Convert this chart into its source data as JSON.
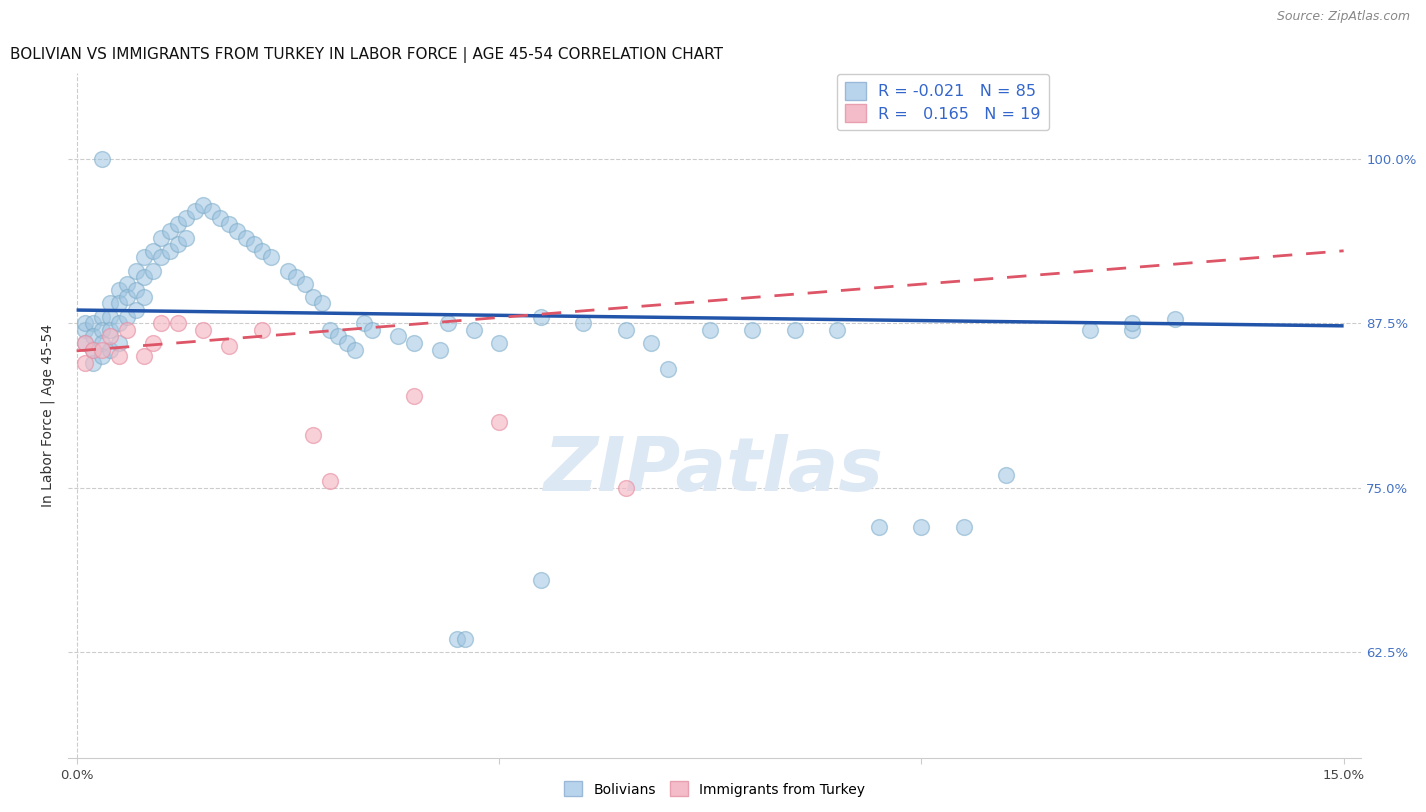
{
  "title": "BOLIVIAN VS IMMIGRANTS FROM TURKEY IN LABOR FORCE | AGE 45-54 CORRELATION CHART",
  "source": "Source: ZipAtlas.com",
  "ylabel": "In Labor Force | Age 45-54",
  "xlim": [
    -0.001,
    0.152
  ],
  "ylim": [
    0.545,
    1.065
  ],
  "xtick_positions": [
    0.0,
    0.05,
    0.1,
    0.15
  ],
  "xtick_labels": [
    "0.0%",
    "",
    "",
    "15.0%"
  ],
  "ytick_positions": [
    0.625,
    0.75,
    0.875,
    1.0
  ],
  "ytick_labels_right": [
    "62.5%",
    "75.0%",
    "87.5%",
    "100.0%"
  ],
  "blue_color": "#9ec4e0",
  "blue_edge": "#7aaac8",
  "pink_color": "#f4b8c4",
  "pink_edge": "#e890a4",
  "blue_line_color": "#2255aa",
  "pink_line_color": "#dd5566",
  "r_text_color": "#3366cc",
  "n_text_color": "#3366cc",
  "title_color": "#111111",
  "source_color": "#888888",
  "watermark_color": "#dde8f5",
  "tick_color": "#4472c4",
  "marker_size": 130,
  "blue_alpha": 0.55,
  "pink_alpha": 0.65,
  "blue_line_y0": 0.885,
  "blue_line_y1": 0.873,
  "pink_line_y0": 0.854,
  "pink_line_y1": 0.93,
  "bolivians_x": [
    0.001,
    0.001,
    0.001,
    0.002,
    0.002,
    0.002,
    0.002,
    0.003,
    0.003,
    0.003,
    0.003,
    0.004,
    0.004,
    0.004,
    0.004,
    0.005,
    0.005,
    0.005,
    0.005,
    0.006,
    0.006,
    0.006,
    0.007,
    0.007,
    0.007,
    0.008,
    0.008,
    0.008,
    0.009,
    0.009,
    0.01,
    0.01,
    0.011,
    0.011,
    0.012,
    0.012,
    0.013,
    0.013,
    0.014,
    0.015,
    0.016,
    0.017,
    0.018,
    0.019,
    0.02,
    0.021,
    0.022,
    0.023,
    0.025,
    0.026,
    0.027,
    0.028,
    0.029,
    0.03,
    0.031,
    0.032,
    0.033,
    0.034,
    0.035,
    0.038,
    0.04,
    0.043,
    0.044,
    0.047,
    0.05,
    0.055,
    0.06,
    0.065,
    0.068,
    0.07,
    0.075,
    0.08,
    0.085,
    0.09,
    0.1,
    0.105,
    0.11,
    0.12,
    0.125,
    0.13,
    0.003,
    0.125,
    0.095,
    0.045,
    0.046,
    0.055
  ],
  "bolivians_y": [
    0.87,
    0.875,
    0.86,
    0.875,
    0.865,
    0.855,
    0.845,
    0.88,
    0.87,
    0.86,
    0.85,
    0.89,
    0.88,
    0.87,
    0.855,
    0.9,
    0.89,
    0.875,
    0.86,
    0.905,
    0.895,
    0.88,
    0.915,
    0.9,
    0.885,
    0.925,
    0.91,
    0.895,
    0.93,
    0.915,
    0.94,
    0.925,
    0.945,
    0.93,
    0.95,
    0.935,
    0.955,
    0.94,
    0.96,
    0.965,
    0.96,
    0.955,
    0.95,
    0.945,
    0.94,
    0.935,
    0.93,
    0.925,
    0.915,
    0.91,
    0.905,
    0.895,
    0.89,
    0.87,
    0.865,
    0.86,
    0.855,
    0.875,
    0.87,
    0.865,
    0.86,
    0.855,
    0.875,
    0.87,
    0.86,
    0.88,
    0.875,
    0.87,
    0.86,
    0.84,
    0.87,
    0.87,
    0.87,
    0.87,
    0.72,
    0.72,
    0.76,
    0.87,
    0.87,
    0.878,
    1.0,
    0.875,
    0.72,
    0.635,
    0.635,
    0.68
  ],
  "turkey_x": [
    0.001,
    0.001,
    0.002,
    0.003,
    0.004,
    0.005,
    0.006,
    0.008,
    0.009,
    0.01,
    0.012,
    0.015,
    0.018,
    0.022,
    0.028,
    0.03,
    0.04,
    0.05,
    0.065
  ],
  "turkey_y": [
    0.86,
    0.845,
    0.855,
    0.855,
    0.865,
    0.85,
    0.87,
    0.85,
    0.86,
    0.875,
    0.875,
    0.87,
    0.858,
    0.87,
    0.79,
    0.755,
    0.82,
    0.8,
    0.75
  ]
}
